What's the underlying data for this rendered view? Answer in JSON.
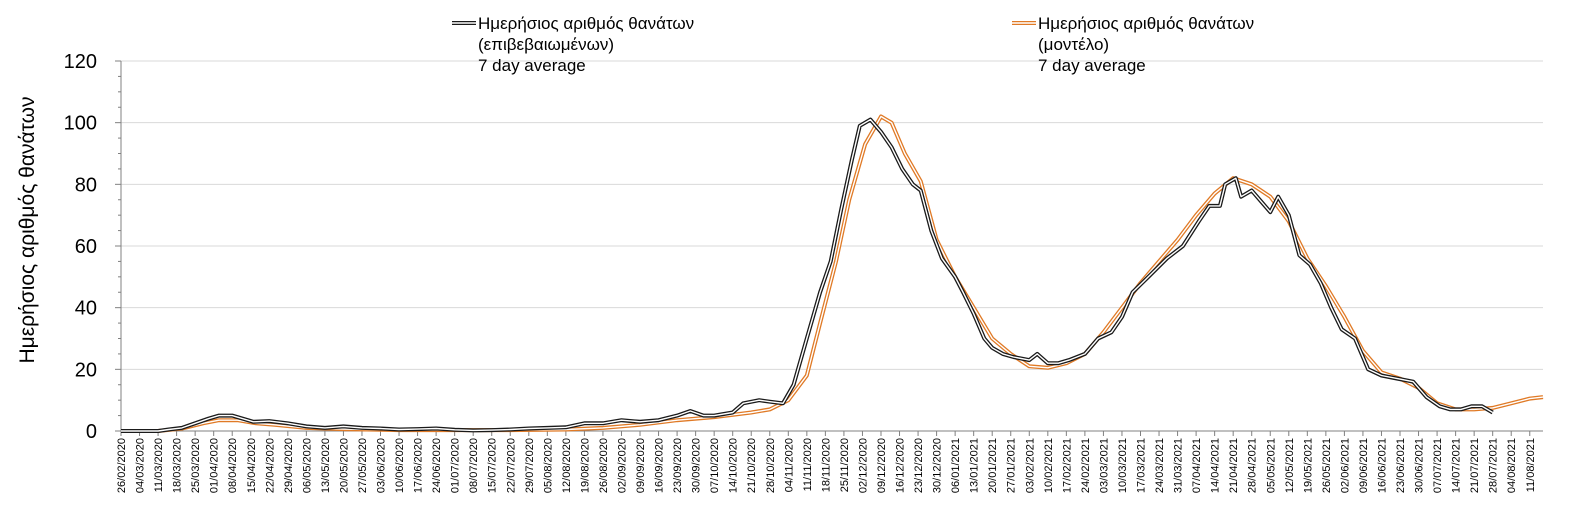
{
  "chart_data": {
    "type": "line",
    "ylabel": "Ημερήσιος αριθμός θανάτων",
    "xlabel": "",
    "ylim": [
      0,
      120
    ],
    "yticks": [
      0,
      20,
      40,
      60,
      80,
      100,
      120
    ],
    "grid": "horizontal",
    "legend_position": "top",
    "x_start_date": "2020-02-26",
    "x_end_date": "2021-08-16",
    "x_tick_labels": [
      "26/02/2020",
      "04/03/2020",
      "11/03/2020",
      "18/03/2020",
      "25/03/2020",
      "01/04/2020",
      "08/04/2020",
      "15/04/2020",
      "22/04/2020",
      "29/04/2020",
      "06/05/2020",
      "13/05/2020",
      "20/05/2020",
      "27/05/2020",
      "03/06/2020",
      "10/06/2020",
      "17/06/2020",
      "24/06/2020",
      "01/07/2020",
      "08/07/2020",
      "15/07/2020",
      "22/07/2020",
      "29/07/2020",
      "05/08/2020",
      "12/08/2020",
      "19/08/2020",
      "26/08/2020",
      "02/09/2020",
      "09/09/2020",
      "16/09/2020",
      "23/09/2020",
      "30/09/2020",
      "07/10/2020",
      "14/10/2020",
      "21/10/2020",
      "28/10/2020",
      "04/11/2020",
      "11/11/2020",
      "18/11/2020",
      "25/11/2020",
      "02/12/2020",
      "09/12/2020",
      "16/12/2020",
      "23/12/2020",
      "30/12/2020",
      "06/01/2021",
      "13/01/2021",
      "20/01/2021",
      "27/01/2021",
      "03/02/2021",
      "10/02/2021",
      "17/02/2021",
      "24/02/2021",
      "03/03/2021",
      "10/03/2021",
      "17/03/2021",
      "24/03/2021",
      "31/03/2021",
      "07/04/2021",
      "14/04/2021",
      "21/04/2021",
      "28/04/2021",
      "05/05/2021",
      "12/05/2021",
      "19/05/2021",
      "26/05/2021",
      "02/06/2021",
      "09/06/2021",
      "16/06/2021",
      "23/06/2021",
      "30/06/2021",
      "07/07/2021",
      "14/07/2021",
      "21/07/2021",
      "28/07/2021",
      "04/08/2021",
      "11/08/2021"
    ],
    "colors": {
      "confirmed": "#1a1a1a",
      "model": "#e07a26"
    },
    "series": [
      {
        "name_lines": [
          "Ημερήσιος αριθμός θανάτων",
          "(επιβεβαιωμένων)",
          "7 day average"
        ],
        "points": [
          [
            "2020-02-26",
            0
          ],
          [
            "2020-03-11",
            0
          ],
          [
            "2020-03-15",
            0.5
          ],
          [
            "2020-03-20",
            1
          ],
          [
            "2020-03-25",
            2.5
          ],
          [
            "2020-03-30",
            4
          ],
          [
            "2020-04-03",
            5
          ],
          [
            "2020-04-08",
            5
          ],
          [
            "2020-04-12",
            4
          ],
          [
            "2020-04-16",
            3
          ],
          [
            "2020-04-22",
            3.2
          ],
          [
            "2020-04-29",
            2.5
          ],
          [
            "2020-05-06",
            1.5
          ],
          [
            "2020-05-13",
            1
          ],
          [
            "2020-05-20",
            1.5
          ],
          [
            "2020-05-27",
            1
          ],
          [
            "2020-06-03",
            0.8
          ],
          [
            "2020-06-10",
            0.5
          ],
          [
            "2020-06-17",
            0.6
          ],
          [
            "2020-06-24",
            0.8
          ],
          [
            "2020-07-01",
            0.4
          ],
          [
            "2020-07-08",
            0.2
          ],
          [
            "2020-07-15",
            0.3
          ],
          [
            "2020-07-22",
            0.5
          ],
          [
            "2020-07-29",
            0.8
          ],
          [
            "2020-08-05",
            1
          ],
          [
            "2020-08-12",
            1.2
          ],
          [
            "2020-08-19",
            2.5
          ],
          [
            "2020-08-26",
            2.5
          ],
          [
            "2020-09-02",
            3.5
          ],
          [
            "2020-09-09",
            3
          ],
          [
            "2020-09-16",
            3.5
          ],
          [
            "2020-09-23",
            5
          ],
          [
            "2020-09-28",
            6.5
          ],
          [
            "2020-10-03",
            5
          ],
          [
            "2020-10-07",
            5
          ],
          [
            "2020-10-14",
            6
          ],
          [
            "2020-10-18",
            9
          ],
          [
            "2020-10-24",
            10
          ],
          [
            "2020-10-28",
            9.5
          ],
          [
            "2020-11-02",
            9
          ],
          [
            "2020-11-06",
            15
          ],
          [
            "2020-11-11",
            30
          ],
          [
            "2020-11-16",
            45
          ],
          [
            "2020-11-20",
            55
          ],
          [
            "2020-11-24",
            72
          ],
          [
            "2020-11-28",
            88
          ],
          [
            "2020-12-01",
            99
          ],
          [
            "2020-12-05",
            101
          ],
          [
            "2020-12-09",
            97
          ],
          [
            "2020-12-13",
            92
          ],
          [
            "2020-12-17",
            85
          ],
          [
            "2020-12-21",
            80
          ],
          [
            "2020-12-24",
            78
          ],
          [
            "2020-12-28",
            65
          ],
          [
            "2021-01-01",
            56
          ],
          [
            "2021-01-06",
            50
          ],
          [
            "2021-01-09",
            45
          ],
          [
            "2021-01-13",
            38
          ],
          [
            "2021-01-17",
            30
          ],
          [
            "2021-01-20",
            27
          ],
          [
            "2021-01-24",
            25
          ],
          [
            "2021-01-28",
            24
          ],
          [
            "2021-02-03",
            23
          ],
          [
            "2021-02-06",
            25
          ],
          [
            "2021-02-10",
            22
          ],
          [
            "2021-02-14",
            22
          ],
          [
            "2021-02-18",
            23
          ],
          [
            "2021-02-24",
            25
          ],
          [
            "2021-03-01",
            30
          ],
          [
            "2021-03-06",
            32
          ],
          [
            "2021-03-10",
            37
          ],
          [
            "2021-03-14",
            45
          ],
          [
            "2021-03-20",
            50
          ],
          [
            "2021-03-27",
            56
          ],
          [
            "2021-04-02",
            60
          ],
          [
            "2021-04-08",
            68
          ],
          [
            "2021-04-12",
            73
          ],
          [
            "2021-04-16",
            73
          ],
          [
            "2021-04-18",
            80
          ],
          [
            "2021-04-22",
            82
          ],
          [
            "2021-04-24",
            76
          ],
          [
            "2021-04-28",
            78
          ],
          [
            "2021-05-01",
            75
          ],
          [
            "2021-05-05",
            71
          ],
          [
            "2021-05-08",
            76
          ],
          [
            "2021-05-12",
            70
          ],
          [
            "2021-05-16",
            57
          ],
          [
            "2021-05-20",
            54
          ],
          [
            "2021-05-24",
            48
          ],
          [
            "2021-05-28",
            40
          ],
          [
            "2021-06-01",
            33
          ],
          [
            "2021-06-06",
            30
          ],
          [
            "2021-06-11",
            20
          ],
          [
            "2021-06-16",
            18
          ],
          [
            "2021-06-22",
            17
          ],
          [
            "2021-06-28",
            16
          ],
          [
            "2021-07-03",
            11
          ],
          [
            "2021-07-08",
            8
          ],
          [
            "2021-07-12",
            7
          ],
          [
            "2021-07-16",
            7
          ],
          [
            "2021-07-20",
            8
          ],
          [
            "2021-07-24",
            8
          ],
          [
            "2021-07-28",
            6
          ]
        ]
      },
      {
        "name_lines": [
          "Ημερήσιος αριθμός θανάτων",
          "(μοντέλο)",
          "7 day average"
        ],
        "points": [
          [
            "2020-02-26",
            0
          ],
          [
            "2020-03-11",
            0
          ],
          [
            "2020-03-20",
            0.8
          ],
          [
            "2020-03-28",
            2.5
          ],
          [
            "2020-04-03",
            3.5
          ],
          [
            "2020-04-10",
            3.5
          ],
          [
            "2020-04-17",
            2.5
          ],
          [
            "2020-04-24",
            2
          ],
          [
            "2020-05-06",
            1
          ],
          [
            "2020-05-20",
            0.6
          ],
          [
            "2020-06-10",
            0.3
          ],
          [
            "2020-07-01",
            0.3
          ],
          [
            "2020-07-22",
            0.3
          ],
          [
            "2020-08-12",
            0.5
          ],
          [
            "2020-08-26",
            1
          ],
          [
            "2020-09-09",
            2
          ],
          [
            "2020-09-23",
            3.5
          ],
          [
            "2020-10-07",
            4.5
          ],
          [
            "2020-10-21",
            6
          ],
          [
            "2020-10-28",
            7
          ],
          [
            "2020-11-04",
            10
          ],
          [
            "2020-11-11",
            18
          ],
          [
            "2020-11-16",
            35
          ],
          [
            "2020-11-22",
            55
          ],
          [
            "2020-11-27",
            75
          ],
          [
            "2020-12-03",
            93
          ],
          [
            "2020-12-09",
            102
          ],
          [
            "2020-12-13",
            100
          ],
          [
            "2020-12-18",
            90
          ],
          [
            "2020-12-24",
            81
          ],
          [
            "2020-12-30",
            62
          ],
          [
            "2021-01-06",
            50
          ],
          [
            "2021-01-13",
            40
          ],
          [
            "2021-01-20",
            30
          ],
          [
            "2021-01-27",
            25
          ],
          [
            "2021-02-03",
            21
          ],
          [
            "2021-02-10",
            20.5
          ],
          [
            "2021-02-17",
            22
          ],
          [
            "2021-02-24",
            25
          ],
          [
            "2021-03-03",
            32
          ],
          [
            "2021-03-10",
            40
          ],
          [
            "2021-03-17",
            48
          ],
          [
            "2021-03-24",
            55
          ],
          [
            "2021-03-31",
            62
          ],
          [
            "2021-04-07",
            70
          ],
          [
            "2021-04-14",
            77
          ],
          [
            "2021-04-21",
            82
          ],
          [
            "2021-04-28",
            80
          ],
          [
            "2021-05-05",
            76
          ],
          [
            "2021-05-12",
            68
          ],
          [
            "2021-05-19",
            56
          ],
          [
            "2021-05-26",
            47
          ],
          [
            "2021-06-02",
            37
          ],
          [
            "2021-06-09",
            26
          ],
          [
            "2021-06-16",
            19
          ],
          [
            "2021-06-23",
            17
          ],
          [
            "2021-06-30",
            14
          ],
          [
            "2021-07-07",
            9
          ],
          [
            "2021-07-14",
            7
          ],
          [
            "2021-07-21",
            7
          ],
          [
            "2021-07-28",
            7.5
          ],
          [
            "2021-08-04",
            9
          ],
          [
            "2021-08-11",
            10.5
          ],
          [
            "2021-08-16",
            11
          ]
        ]
      }
    ]
  }
}
